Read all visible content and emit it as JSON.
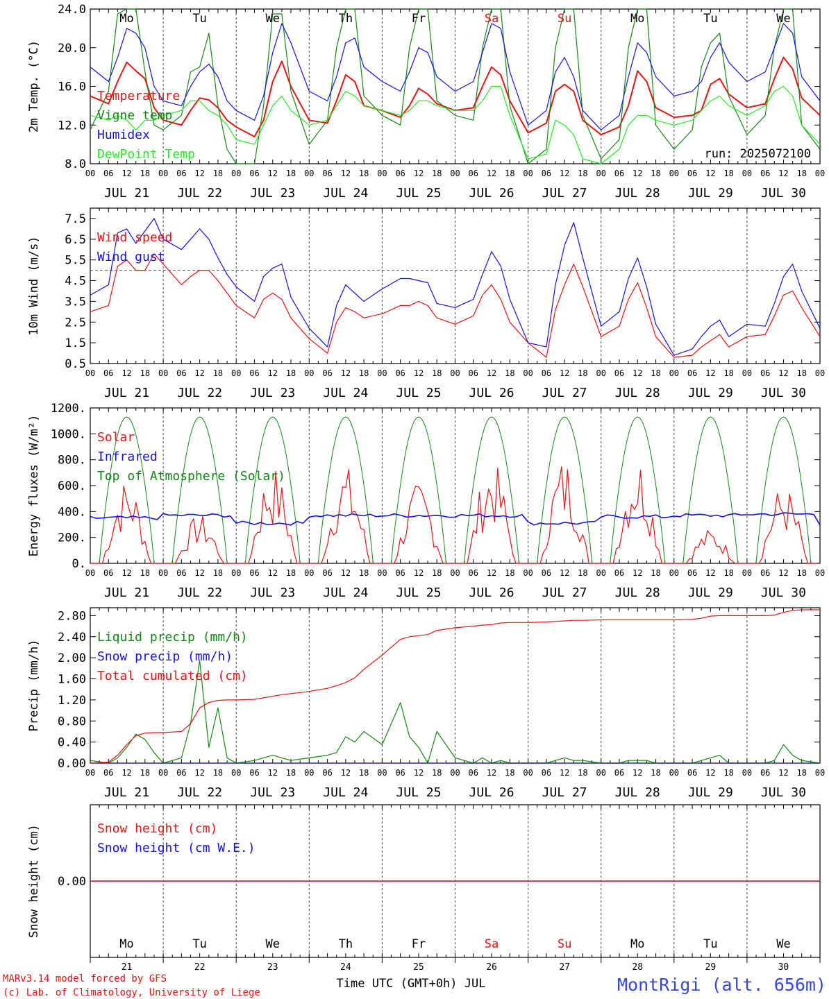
{
  "chart_data": [
    {
      "type": "line",
      "panel": "temperature",
      "ylabel": "2m Temp. (°C)",
      "ylim": [
        8.0,
        24.0
      ],
      "yticks": [
        8.0,
        12.0,
        16.0,
        20.0,
        24.0
      ],
      "ytick_labels": [
        "8.0",
        "12.0",
        "16.0",
        "20.0",
        "24.0"
      ],
      "legend": [
        "Temperature",
        "Vigne temp",
        "Humidex",
        "DewPoint Temp"
      ],
      "annotation": "run: 2025072100",
      "x_hours": [
        0,
        6,
        9,
        12,
        15,
        18,
        21,
        24,
        30,
        33,
        36,
        39,
        42,
        45,
        48,
        54,
        57,
        60,
        63,
        66,
        72,
        78,
        81,
        84,
        87,
        90,
        96,
        102,
        105,
        108,
        111,
        114,
        120,
        126,
        129,
        132,
        135,
        138,
        144,
        150,
        153,
        156,
        159,
        162,
        168,
        174,
        177,
        180,
        183,
        186,
        192,
        198,
        201,
        204,
        207,
        210,
        216,
        222,
        225,
        228,
        231,
        234,
        240
      ],
      "series": [
        {
          "name": "Temperature",
          "color": "#ee1111",
          "values": [
            15.0,
            14.2,
            16.5,
            18.5,
            17.6,
            16.8,
            13.8,
            12.5,
            12.0,
            13.5,
            14.8,
            14.6,
            13.8,
            12.5,
            11.8,
            10.8,
            12.5,
            16.5,
            18.6,
            16.0,
            12.5,
            12.2,
            14.5,
            17.2,
            16.5,
            14.0,
            13.5,
            12.8,
            14.0,
            15.8,
            15.2,
            14.2,
            13.5,
            13.8,
            16.0,
            18.0,
            17.2,
            14.5,
            11.2,
            12.2,
            15.5,
            16.2,
            15.5,
            12.5,
            11.0,
            11.8,
            14.0,
            17.6,
            16.5,
            13.8,
            12.8,
            13.0,
            13.5,
            16.2,
            16.8,
            15.2,
            13.8,
            14.2,
            16.8,
            19.0,
            17.8,
            14.8,
            13.0
          ]
        },
        {
          "name": "Vigne temp",
          "color": "#118811",
          "values": [
            11.5,
            15.5,
            23.5,
            24.0,
            24.0,
            17.5,
            12.0,
            11.5,
            13.0,
            17.5,
            18.0,
            21.5,
            14.0,
            9.5,
            8.0,
            8.0,
            14.0,
            23.5,
            23.5,
            15.5,
            10.0,
            12.5,
            20.0,
            24.0,
            24.0,
            15.0,
            13.0,
            12.0,
            20.0,
            24.0,
            24.0,
            14.5,
            13.0,
            12.5,
            20.0,
            24.0,
            24.0,
            14.0,
            8.0,
            9.5,
            20.0,
            24.0,
            24.0,
            13.0,
            8.5,
            10.5,
            20.0,
            24.0,
            24.0,
            12.0,
            9.5,
            11.5,
            18.0,
            20.5,
            21.5,
            15.0,
            11.0,
            13.0,
            20.0,
            24.0,
            24.0,
            12.0,
            9.5
          ]
        },
        {
          "name": "Humidex",
          "color": "#1111ee",
          "values": [
            18.0,
            16.5,
            19.0,
            22.0,
            21.5,
            20.0,
            16.0,
            14.5,
            14.0,
            16.0,
            17.5,
            18.3,
            17.0,
            14.5,
            13.5,
            12.5,
            15.0,
            19.5,
            22.5,
            20.5,
            15.5,
            14.5,
            17.0,
            20.5,
            21.0,
            18.0,
            16.5,
            15.5,
            17.5,
            20.0,
            19.5,
            17.0,
            15.5,
            16.5,
            19.5,
            22.5,
            22.0,
            17.5,
            12.0,
            13.5,
            17.5,
            19.0,
            17.0,
            13.5,
            11.5,
            13.0,
            17.0,
            20.5,
            19.5,
            17.0,
            15.0,
            15.5,
            16.5,
            19.0,
            20.5,
            18.5,
            16.5,
            17.5,
            20.0,
            22.5,
            21.5,
            17.0,
            14.5
          ]
        },
        {
          "name": "DewPoint Temp",
          "color": "#22ee22",
          "values": [
            13.0,
            12.5,
            13.0,
            12.5,
            11.5,
            12.5,
            12.5,
            13.0,
            13.5,
            14.5,
            14.5,
            13.5,
            13.0,
            12.0,
            10.5,
            10.0,
            12.0,
            14.0,
            15.0,
            13.5,
            12.0,
            12.5,
            14.0,
            15.5,
            15.0,
            14.0,
            13.5,
            13.0,
            13.5,
            14.5,
            14.5,
            14.0,
            13.5,
            13.5,
            14.5,
            16.0,
            16.0,
            13.0,
            8.5,
            9.0,
            12.5,
            12.0,
            11.0,
            8.5,
            8.0,
            9.5,
            12.0,
            13.0,
            13.0,
            12.5,
            12.0,
            12.5,
            13.5,
            14.5,
            15.0,
            14.0,
            13.0,
            14.0,
            15.5,
            16.0,
            15.0,
            12.0,
            10.0
          ]
        }
      ]
    },
    {
      "type": "line",
      "panel": "wind",
      "ylabel": "10m Wind (m/s)",
      "ylim": [
        0.5,
        8.0
      ],
      "yticks": [
        0.5,
        1.5,
        2.5,
        3.5,
        4.5,
        5.5,
        6.5,
        7.5
      ],
      "ytick_labels": [
        "0.5",
        "1.5",
        "2.5",
        "3.5",
        "4.5",
        "5.5",
        "6.5",
        "7.5"
      ],
      "reference_line": 5.0,
      "legend": [
        "Wind speed",
        "Wind gust"
      ],
      "x_hours": [
        0,
        6,
        9,
        12,
        15,
        18,
        21,
        24,
        30,
        33,
        36,
        39,
        42,
        45,
        48,
        54,
        57,
        60,
        63,
        66,
        72,
        78,
        81,
        84,
        87,
        90,
        96,
        102,
        105,
        108,
        111,
        114,
        120,
        126,
        129,
        132,
        135,
        138,
        144,
        150,
        153,
        156,
        159,
        162,
        168,
        174,
        177,
        180,
        183,
        186,
        192,
        198,
        201,
        204,
        207,
        210,
        216,
        222,
        225,
        228,
        231,
        234,
        240
      ],
      "series": [
        {
          "name": "Wind speed",
          "color": "#ee1111",
          "values": [
            3.0,
            3.3,
            5.2,
            5.5,
            5.0,
            5.0,
            5.8,
            5.3,
            4.3,
            4.7,
            5.0,
            5.0,
            4.5,
            3.9,
            3.3,
            2.7,
            3.6,
            3.9,
            3.6,
            2.7,
            1.7,
            1.0,
            2.5,
            3.2,
            3.0,
            2.7,
            2.9,
            3.3,
            3.3,
            3.5,
            3.3,
            2.7,
            2.4,
            2.8,
            3.8,
            4.3,
            3.6,
            2.5,
            1.5,
            0.8,
            3.1,
            4.3,
            5.3,
            4.2,
            1.8,
            2.3,
            3.6,
            4.4,
            3.2,
            1.8,
            0.8,
            0.9,
            1.3,
            1.6,
            1.9,
            1.3,
            1.8,
            1.9,
            2.8,
            3.8,
            4.0,
            3.2,
            1.8
          ]
        },
        {
          "name": "Wind gust",
          "color": "#1111ee",
          "values": [
            3.8,
            4.3,
            6.8,
            7.0,
            6.3,
            6.9,
            7.5,
            6.5,
            6.0,
            6.5,
            7.0,
            6.5,
            5.6,
            4.8,
            4.2,
            3.5,
            4.7,
            5.1,
            5.3,
            3.7,
            2.2,
            1.3,
            3.3,
            4.3,
            3.9,
            3.5,
            4.1,
            4.6,
            4.6,
            4.5,
            4.4,
            3.4,
            3.2,
            3.6,
            4.8,
            5.9,
            5.2,
            3.6,
            1.5,
            1.3,
            4.3,
            6.2,
            7.3,
            5.6,
            2.3,
            3.0,
            4.6,
            5.6,
            4.2,
            2.4,
            0.9,
            1.2,
            1.8,
            2.3,
            2.6,
            1.8,
            2.4,
            2.3,
            3.4,
            4.7,
            5.3,
            4.0,
            2.2
          ]
        }
      ]
    },
    {
      "type": "line",
      "panel": "energy",
      "ylabel": "Energy fluxes (W/m²)",
      "ylim": [
        0,
        1200
      ],
      "yticks": [
        0,
        200,
        400,
        600,
        800,
        1000,
        1200
      ],
      "ytick_labels": [
        "0.",
        "200.",
        "400.",
        "600.",
        "800.",
        "1000.",
        "1200."
      ],
      "legend": [
        "Solar",
        "Infrared",
        "Top of Atmosphere (Solar)"
      ],
      "toa_peak": 1130,
      "solar_daily_peaks": [
        660,
        380,
        760,
        760,
        620,
        800,
        830,
        850,
        270,
        620
      ],
      "infrared_daily": [
        350,
        370,
        310,
        370,
        370,
        370,
        310,
        360,
        370,
        380
      ],
      "series": [
        {
          "name": "Solar",
          "color": "#ee1111"
        },
        {
          "name": "Infrared",
          "color": "#1111ee"
        },
        {
          "name": "Top of Atmosphere (Solar)",
          "color": "#118811"
        }
      ]
    },
    {
      "type": "line",
      "panel": "precip",
      "ylabel": "Precip (mm/h)",
      "ylim": [
        0,
        2.95
      ],
      "yticks": [
        0,
        0.4,
        0.8,
        1.2,
        1.6,
        2.0,
        2.4,
        2.8
      ],
      "ytick_labels": [
        "0.00",
        "0.40",
        "0.80",
        "1.20",
        "1.60",
        "2.00",
        "2.40",
        "2.80"
      ],
      "legend": [
        "Liquid precip (mm/h)",
        "Snow precip (mm/h)",
        "Total cumulated (cm)"
      ],
      "x_hours": [
        0,
        6,
        9,
        12,
        15,
        18,
        21,
        24,
        30,
        33,
        36,
        39,
        42,
        45,
        48,
        54,
        57,
        60,
        63,
        66,
        72,
        78,
        81,
        84,
        87,
        90,
        96,
        102,
        105,
        108,
        111,
        114,
        120,
        126,
        129,
        132,
        135,
        138,
        144,
        150,
        153,
        156,
        159,
        162,
        168,
        174,
        177,
        180,
        183,
        186,
        192,
        198,
        201,
        204,
        207,
        210,
        216,
        222,
        225,
        228,
        231,
        234,
        240
      ],
      "series": [
        {
          "name": "Liquid precip (mm/h)",
          "color": "#118811",
          "values": [
            0.05,
            0.0,
            0.1,
            0.3,
            0.55,
            0.45,
            0.2,
            0.0,
            0.1,
            0.75,
            1.95,
            0.3,
            1.05,
            0.1,
            0.0,
            0.05,
            0.1,
            0.15,
            0.1,
            0.05,
            0.1,
            0.15,
            0.2,
            0.5,
            0.4,
            0.6,
            0.35,
            1.15,
            0.5,
            0.3,
            0.0,
            0.6,
            0.1,
            0.0,
            0.1,
            0.0,
            0.05,
            0.0,
            0.0,
            0.0,
            0.05,
            0.1,
            0.05,
            0.05,
            0.0,
            0.0,
            0.05,
            0.05,
            0.05,
            0.0,
            0.0,
            0.0,
            0.05,
            0.1,
            0.15,
            0.0,
            0.0,
            0.0,
            0.05,
            0.35,
            0.15,
            0.05,
            0.0
          ]
        },
        {
          "name": "Snow precip (mm/h)",
          "color": "#1111ee",
          "values": [
            0,
            0,
            0,
            0,
            0,
            0,
            0,
            0,
            0,
            0,
            0,
            0,
            0,
            0,
            0,
            0,
            0,
            0,
            0,
            0,
            0,
            0,
            0,
            0,
            0,
            0,
            0,
            0,
            0,
            0,
            0,
            0,
            0,
            0,
            0,
            0,
            0,
            0,
            0,
            0,
            0,
            0,
            0,
            0,
            0,
            0,
            0,
            0,
            0,
            0,
            0,
            0,
            0,
            0,
            0,
            0,
            0,
            0,
            0,
            0,
            0,
            0,
            0
          ]
        },
        {
          "name": "Total cumulated (cm)",
          "color": "#ee1111",
          "values": [
            0.0,
            0.02,
            0.15,
            0.35,
            0.52,
            0.57,
            0.58,
            0.58,
            0.6,
            0.75,
            1.05,
            1.15,
            1.19,
            1.2,
            1.2,
            1.21,
            1.24,
            1.27,
            1.3,
            1.32,
            1.36,
            1.42,
            1.47,
            1.53,
            1.62,
            1.78,
            2.05,
            2.35,
            2.4,
            2.42,
            2.44,
            2.52,
            2.57,
            2.6,
            2.62,
            2.63,
            2.66,
            2.67,
            2.67,
            2.68,
            2.69,
            2.7,
            2.71,
            2.71,
            2.72,
            2.72,
            2.72,
            2.72,
            2.72,
            2.72,
            2.72,
            2.73,
            2.75,
            2.79,
            2.8,
            2.8,
            2.8,
            2.8,
            2.81,
            2.86,
            2.9,
            2.91,
            2.91
          ]
        }
      ]
    },
    {
      "type": "line",
      "panel": "snow",
      "ylabel": "Snow height (cm)",
      "ytick_labels": [
        "0.00"
      ],
      "legend": [
        "Snow height (cm)",
        "Snow height (cm W.E.)"
      ],
      "series": [
        {
          "name": "Snow height (cm)",
          "color": "#ee1111",
          "values": [
            0.0,
            0.0
          ]
        },
        {
          "name": "Snow height (cm W.E.)",
          "color": "#1111ee",
          "values": [
            0.0,
            0.0
          ]
        }
      ]
    }
  ],
  "x_axis": {
    "hour_labels": [
      "00",
      "06",
      "12",
      "18"
    ],
    "final_label": "00",
    "dates": [
      "JUL 21",
      "JUL 22",
      "JUL 23",
      "JUL 24",
      "JUL 25",
      "JUL 26",
      "JUL 27",
      "JUL 28",
      "JUL 29",
      "JUL 30"
    ],
    "weekdays": [
      "Mo",
      "Tu",
      "We",
      "Th",
      "Fr",
      "Sa",
      "Su",
      "Mo",
      "Tu",
      "We"
    ],
    "weekend_flags": [
      false,
      false,
      false,
      false,
      false,
      true,
      true,
      false,
      false,
      false
    ],
    "day_numbers": [
      "21",
      "22",
      "23",
      "24",
      "25",
      "26",
      "27",
      "28",
      "29",
      "30"
    ],
    "title": "Time UTC (GMT+0h) JUL"
  },
  "footer": {
    "credit_line1": "MARv3.14 model forced by GFS",
    "credit_line2": "(c) Lab. of Climatology, University of Liege",
    "station": "MontRigi (alt. 656m)"
  },
  "colors": {
    "red": "#ee1111",
    "green": "#118811",
    "blue": "#1111ee",
    "light_green": "#22ee22",
    "station": "#3344ee"
  }
}
